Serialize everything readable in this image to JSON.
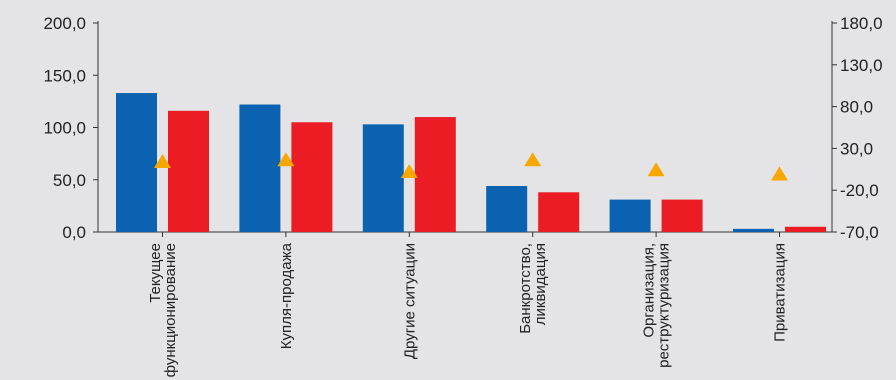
{
  "chart_data": {
    "type": "bar",
    "categories": [
      [
        "Текущее",
        "функционирование"
      ],
      [
        "Купля-продажа"
      ],
      [
        "Другие ситуации"
      ],
      [
        "Банкротство,",
        "ликвидация"
      ],
      [
        "Организация,",
        "реструктуризация"
      ],
      [
        "Приватизация"
      ]
    ],
    "series": [
      {
        "values": [
          133,
          122,
          103,
          44,
          31,
          3
        ],
        "color": "#0a62b0",
        "axis": "left"
      },
      {
        "values": [
          116,
          105,
          110,
          38,
          31,
          5
        ],
        "color": "#ec1c24",
        "axis": "left"
      },
      {
        "values": [
          15,
          17,
          3,
          17,
          5,
          0
        ],
        "color": "#f7a800",
        "axis": "right",
        "marker": "triangle"
      }
    ],
    "y_left": {
      "min": 0,
      "max": 200,
      "ticks": [
        "0,0",
        "50,0",
        "100,0",
        "150,0",
        "200,0"
      ],
      "tick_values": [
        0,
        50,
        100,
        150,
        200
      ]
    },
    "y_right": {
      "min": -70,
      "max": 180,
      "ticks": [
        "-70,0",
        "-20,0",
        "30,0",
        "80,0",
        "130,0",
        "180,0"
      ],
      "tick_values": [
        -70,
        -20,
        30,
        80,
        130,
        180
      ]
    },
    "grid": false,
    "legend": "none",
    "background": "#e4e4e6"
  }
}
